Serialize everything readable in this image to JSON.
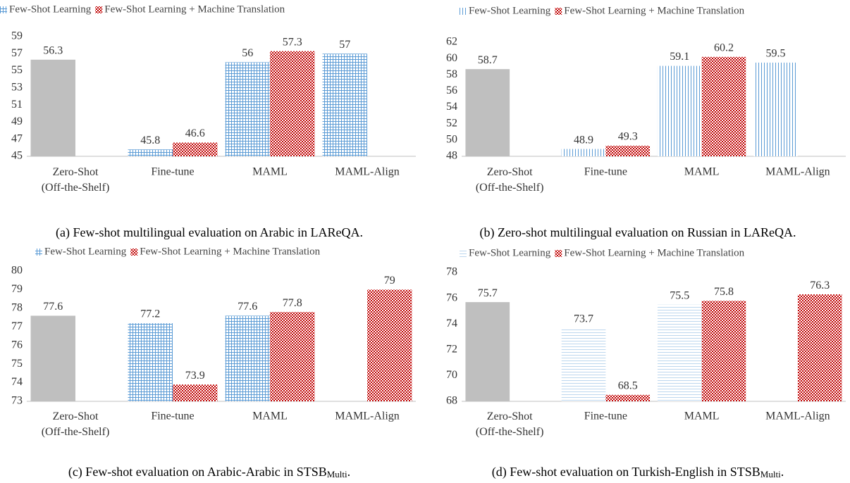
{
  "chart_data": [
    {
      "type": "bar",
      "caption": "(a) Few-shot multilingual evaluation on Arabic in LAReQA.",
      "categories": [
        [
          "Zero-Shot",
          "(Off-the-Shelf)"
        ],
        "Fine-tune",
        "MAML",
        "MAML-Align"
      ],
      "series": [
        {
          "name": "Few-Shot Learning",
          "color": "#5b9bd5",
          "pattern": "grid",
          "point_colors": [
            "#bfbfbf",
            null,
            null,
            null
          ],
          "values": [
            56.3,
            45.8,
            56,
            57
          ]
        },
        {
          "name": "Few-Shot Learning + Machine Translation",
          "color": "#c00000",
          "pattern": "checker",
          "values": [
            null,
            46.6,
            57.3,
            null
          ]
        }
      ],
      "ylim": [
        45,
        59
      ],
      "yticks": [
        45,
        47,
        49,
        51,
        53,
        55,
        57,
        59
      ]
    },
    {
      "type": "bar",
      "caption": "(b) Zero-shot multilingual evaluation on Russian in LAReQA.",
      "categories": [
        [
          "Zero-Shot",
          "(Off-the-Shelf)"
        ],
        "Fine-tune",
        "MAML",
        "MAML-Align"
      ],
      "series": [
        {
          "name": "Few-Shot Learning",
          "color": "#5b9bd5",
          "pattern": "vertical",
          "point_colors": [
            "#bfbfbf",
            null,
            null,
            null
          ],
          "values": [
            58.7,
            48.9,
            59.1,
            59.5
          ]
        },
        {
          "name": "Few-Shot Learning + Machine Translation",
          "color": "#c00000",
          "pattern": "checker",
          "values": [
            null,
            49.3,
            60.2,
            null
          ]
        }
      ],
      "ylim": [
        48,
        62
      ],
      "yticks": [
        48,
        50,
        52,
        54,
        56,
        58,
        60,
        62
      ]
    },
    {
      "type": "bar",
      "caption": "(c) Few-shot evaluation on Arabic-Arabic in STSB",
      "caption_sub": "Multi",
      "caption_end": ".",
      "categories": [
        [
          "Zero-Shot",
          "(Off-the-Shelf)"
        ],
        "Fine-tune",
        "MAML",
        "MAML-Align"
      ],
      "series": [
        {
          "name": "Few-Shot Learning",
          "color": "#5b9bd5",
          "pattern": "grid",
          "point_colors": [
            "#bfbfbf",
            null,
            null,
            null
          ],
          "values": [
            77.6,
            77.2,
            77.6,
            null
          ]
        },
        {
          "name": "Few-Shot Learning + Machine Translation",
          "color": "#c00000",
          "pattern": "checker",
          "values": [
            null,
            73.9,
            77.8,
            79
          ]
        }
      ],
      "ylim": [
        73,
        80
      ],
      "yticks": [
        73,
        74,
        75,
        76,
        77,
        78,
        79,
        80
      ]
    },
    {
      "type": "bar",
      "caption": "(d) Few-shot evaluation on Turkish-English in STSB",
      "caption_sub": "Multi",
      "caption_end": ".",
      "categories": [
        [
          "Zero-Shot",
          "(Off-the-Shelf)"
        ],
        "Fine-tune",
        "MAML",
        "MAML-Align"
      ],
      "series": [
        {
          "name": "Few-Shot Learning",
          "color": "#bdd7ee",
          "pattern": "horizontal",
          "point_colors": [
            "#bfbfbf",
            null,
            null,
            null
          ],
          "values": [
            75.7,
            73.7,
            75.5,
            null
          ]
        },
        {
          "name": "Few-Shot Learning + Machine Translation",
          "color": "#c00000",
          "pattern": "checker",
          "values": [
            null,
            68.5,
            75.8,
            76.3
          ]
        }
      ],
      "ylim": [
        68,
        78
      ],
      "yticks": [
        68,
        70,
        72,
        74,
        76,
        78
      ]
    }
  ]
}
